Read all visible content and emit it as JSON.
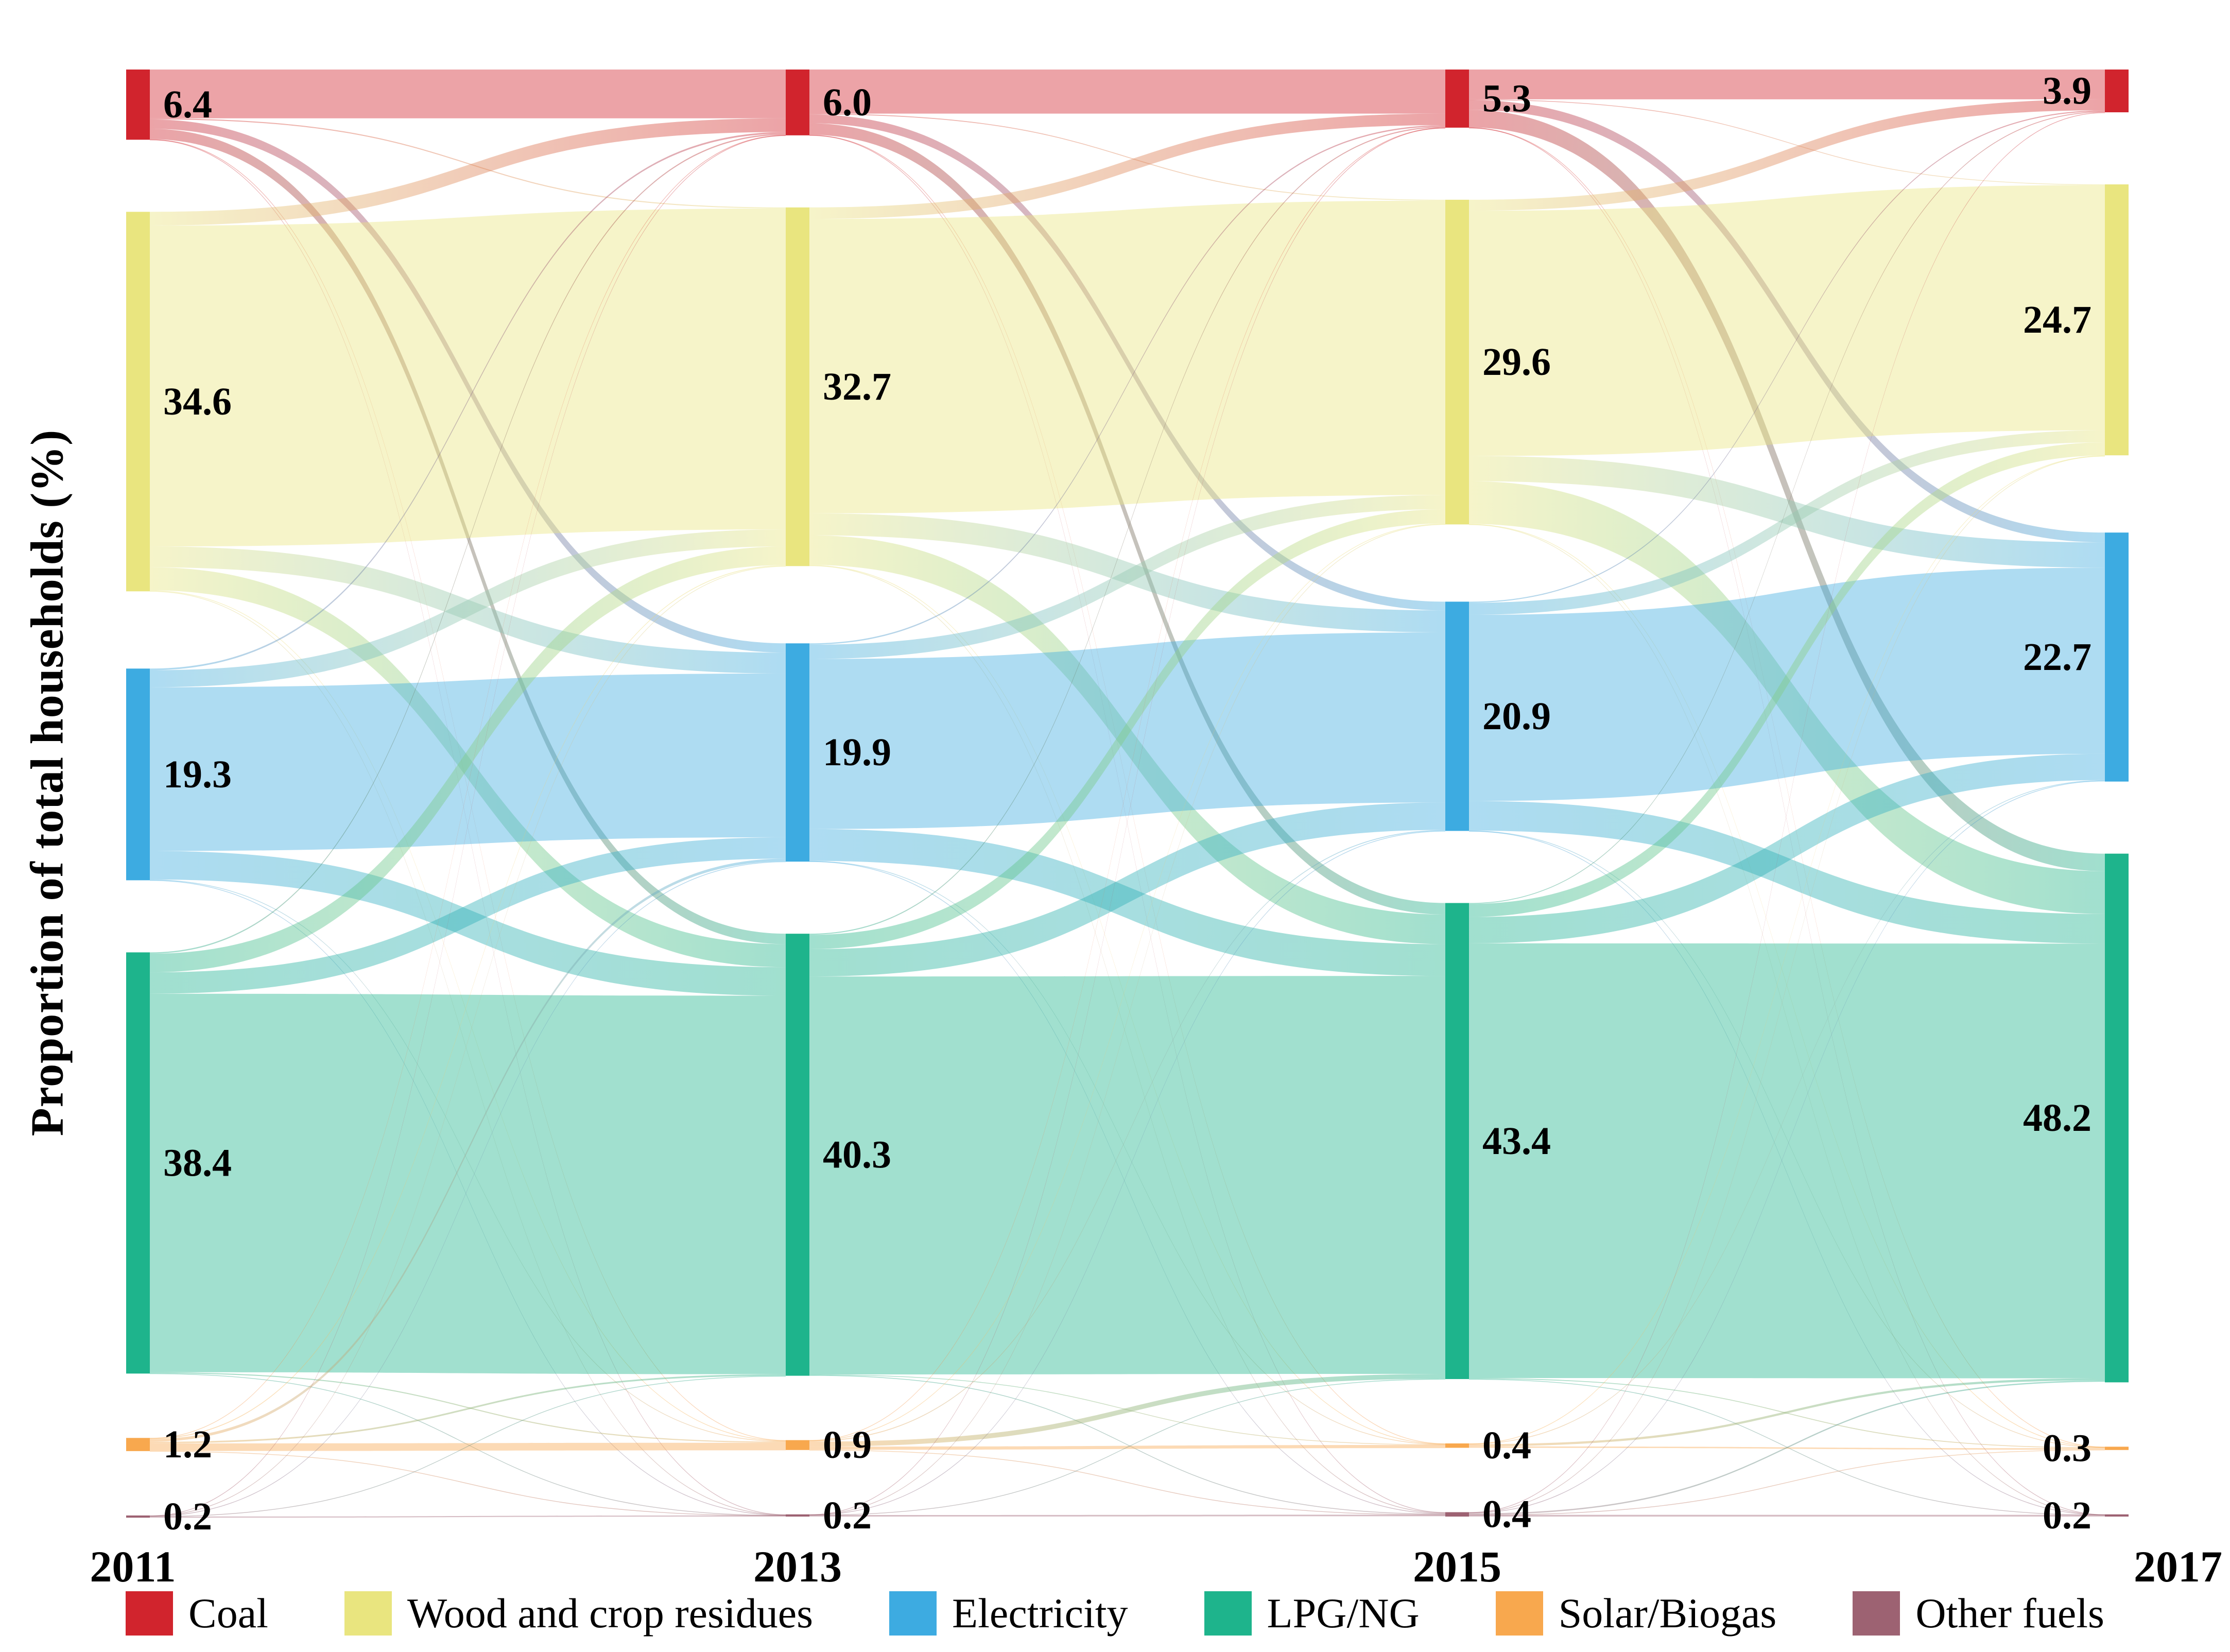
{
  "chart_data": {
    "type": "sankey",
    "title": "",
    "ylabel": "Proportion of total households (%)",
    "legend_position": "bottom",
    "grid": false,
    "years": [
      "2011",
      "2013",
      "2015",
      "2017"
    ],
    "categories": [
      {
        "id": "coal",
        "label": "Coal",
        "color": "#d1242d"
      },
      {
        "id": "wood",
        "label": "Wood and crop residues",
        "color": "#e9e57f"
      },
      {
        "id": "elec",
        "label": "Electricity",
        "color": "#3dabe1"
      },
      {
        "id": "lpg",
        "label": "LPG/NG",
        "color": "#1eb48c"
      },
      {
        "id": "solar",
        "label": "Solar/Biogas",
        "color": "#f8a84e"
      },
      {
        "id": "other",
        "label": "Other fuels",
        "color": "#9d6272"
      }
    ],
    "nodes": {
      "2011": [
        6.4,
        34.6,
        19.3,
        38.4,
        1.2,
        0.2
      ],
      "2013": [
        6.0,
        32.7,
        19.9,
        40.3,
        0.9,
        0.2
      ],
      "2015": [
        5.3,
        29.6,
        20.9,
        43.4,
        0.4,
        0.4
      ],
      "2017": [
        3.9,
        24.7,
        22.7,
        48.2,
        0.3,
        0.2
      ]
    },
    "node_value_labels": {
      "2011": [
        "6.4",
        "34.6",
        "19.3",
        "38.4",
        "1.2",
        "0.2"
      ],
      "2013": [
        "6.0",
        "32.7",
        "19.9",
        "40.3",
        "0.9",
        "0.2"
      ],
      "2015": [
        "5.3",
        "29.6",
        "20.9",
        "43.4",
        "0.4",
        "0.4"
      ],
      "2017": [
        "3.9",
        "24.7",
        "22.7",
        "48.2",
        "0.3",
        "0.2"
      ]
    },
    "flows_note": "link widths estimated from ribbon thickness; values in % of households",
    "flows": [
      {
        "from": "2011",
        "to": "2013",
        "links": [
          [
            0,
            0,
            4.45
          ],
          [
            0,
            1,
            0.1
          ],
          [
            0,
            2,
            0.85
          ],
          [
            0,
            3,
            0.95
          ],
          [
            0,
            4,
            0.03
          ],
          [
            0,
            5,
            0.02
          ],
          [
            1,
            0,
            1.25
          ],
          [
            1,
            1,
            29.26
          ],
          [
            1,
            2,
            1.9
          ],
          [
            1,
            3,
            2.1
          ],
          [
            1,
            4,
            0.06
          ],
          [
            1,
            5,
            0.03
          ],
          [
            2,
            0,
            0.15
          ],
          [
            2,
            1,
            1.55
          ],
          [
            2,
            2,
            14.93
          ],
          [
            2,
            3,
            2.6
          ],
          [
            2,
            4,
            0.05
          ],
          [
            2,
            5,
            0.02
          ],
          [
            3,
            0,
            0.12
          ],
          [
            3,
            1,
            1.7
          ],
          [
            3,
            2,
            1.95
          ],
          [
            3,
            3,
            34.51
          ],
          [
            3,
            4,
            0.1
          ],
          [
            3,
            5,
            0.02
          ],
          [
            4,
            0,
            0.02
          ],
          [
            4,
            1,
            0.08
          ],
          [
            4,
            2,
            0.25
          ],
          [
            4,
            3,
            0.15
          ],
          [
            4,
            4,
            0.69
          ],
          [
            4,
            5,
            0.01
          ],
          [
            5,
            0,
            0.01
          ],
          [
            5,
            1,
            0.02
          ],
          [
            5,
            2,
            0.03
          ],
          [
            5,
            3,
            0.04
          ],
          [
            5,
            5,
            0.1
          ]
        ]
      },
      {
        "from": "2013",
        "to": "2015",
        "links": [
          [
            0,
            0,
            4.02
          ],
          [
            0,
            1,
            0.08
          ],
          [
            0,
            2,
            0.8
          ],
          [
            0,
            3,
            1.05
          ],
          [
            0,
            4,
            0.02
          ],
          [
            0,
            5,
            0.03
          ],
          [
            1,
            0,
            1.05
          ],
          [
            1,
            1,
            26.84
          ],
          [
            1,
            2,
            2.0
          ],
          [
            1,
            3,
            2.7
          ],
          [
            1,
            4,
            0.04
          ],
          [
            1,
            5,
            0.07
          ],
          [
            2,
            0,
            0.12
          ],
          [
            2,
            1,
            1.3
          ],
          [
            2,
            2,
            15.51
          ],
          [
            2,
            3,
            2.9
          ],
          [
            2,
            4,
            0.03
          ],
          [
            2,
            5,
            0.04
          ],
          [
            3,
            0,
            0.1
          ],
          [
            3,
            1,
            1.3
          ],
          [
            3,
            2,
            2.5
          ],
          [
            3,
            3,
            36.28
          ],
          [
            3,
            4,
            0.05
          ],
          [
            3,
            5,
            0.07
          ],
          [
            4,
            0,
            0.01
          ],
          [
            4,
            1,
            0.05
          ],
          [
            4,
            2,
            0.08
          ],
          [
            4,
            3,
            0.45
          ],
          [
            4,
            4,
            0.29
          ],
          [
            4,
            5,
            0.02
          ],
          [
            5,
            0,
            0.01
          ],
          [
            5,
            1,
            0.01
          ],
          [
            5,
            2,
            0.02
          ],
          [
            5,
            3,
            0.02
          ],
          [
            5,
            5,
            0.14
          ]
        ]
      },
      {
        "from": "2015",
        "to": "2017",
        "links": [
          [
            0,
            0,
            2.72
          ],
          [
            0,
            1,
            0.06
          ],
          [
            0,
            2,
            0.9
          ],
          [
            0,
            3,
            1.6
          ],
          [
            0,
            4,
            0.01
          ],
          [
            0,
            5,
            0.01
          ],
          [
            1,
            0,
            1.0
          ],
          [
            1,
            1,
            22.36
          ],
          [
            1,
            2,
            2.3
          ],
          [
            1,
            3,
            3.9
          ],
          [
            1,
            4,
            0.03
          ],
          [
            1,
            5,
            0.01
          ],
          [
            2,
            0,
            0.1
          ],
          [
            2,
            1,
            1.1
          ],
          [
            2,
            2,
            16.97
          ],
          [
            2,
            3,
            2.7
          ],
          [
            2,
            4,
            0.02
          ],
          [
            2,
            5,
            0.01
          ],
          [
            3,
            0,
            0.08
          ],
          [
            3,
            1,
            1.2
          ],
          [
            3,
            2,
            2.4
          ],
          [
            3,
            3,
            39.63
          ],
          [
            3,
            4,
            0.08
          ],
          [
            3,
            5,
            0.01
          ],
          [
            4,
            1,
            0.02
          ],
          [
            4,
            2,
            0.05
          ],
          [
            4,
            3,
            0.2
          ],
          [
            4,
            4,
            0.13
          ],
          [
            5,
            0,
            0.02
          ],
          [
            5,
            1,
            0.03
          ],
          [
            5,
            2,
            0.06
          ],
          [
            5,
            3,
            0.12
          ],
          [
            5,
            4,
            0.01
          ],
          [
            5,
            5,
            0.16
          ]
        ]
      }
    ]
  }
}
